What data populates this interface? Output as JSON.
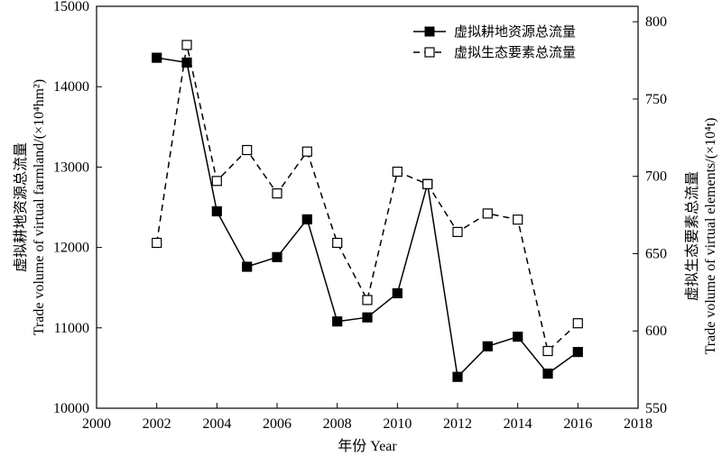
{
  "chart_data": {
    "type": "line",
    "x": [
      2002,
      2003,
      2004,
      2005,
      2006,
      2007,
      2008,
      2009,
      2010,
      2011,
      2012,
      2013,
      2014,
      2015,
      2016
    ],
    "xlabel": "年份 Year",
    "xlim": [
      2000,
      2018
    ],
    "xticks": [
      2000,
      2002,
      2004,
      2006,
      2008,
      2010,
      2012,
      2014,
      2016,
      2018
    ],
    "y_left": {
      "label_cn": "虚拟耕地资源总流量",
      "label_en": "Trade volume of virtual farmland/(×10⁴hm²)",
      "lim": [
        10000,
        15000
      ],
      "ticks": [
        10000,
        11000,
        12000,
        13000,
        14000,
        15000
      ]
    },
    "y_right": {
      "label_cn": "虚拟生态要素总流量",
      "label_en": "Trade volume of virtual elements/(×10⁴t)",
      "lim": [
        550,
        810
      ],
      "ticks": [
        550,
        600,
        650,
        700,
        750,
        800
      ]
    },
    "series": [
      {
        "name": "虚拟耕地资源总流量",
        "axis": "left",
        "line": "solid",
        "marker": "filled-square",
        "values": [
          14360,
          14300,
          12450,
          11760,
          11880,
          12350,
          11080,
          11130,
          11430,
          12790,
          10390,
          10770,
          10890,
          10430,
          10700
        ]
      },
      {
        "name": "虚拟生态要素总流量",
        "axis": "right",
        "line": "dashed",
        "marker": "open-square",
        "values": [
          657,
          785,
          697,
          717,
          689,
          716,
          657,
          620,
          703,
          695,
          664,
          676,
          672,
          587,
          605
        ]
      }
    ],
    "legend_position": "top-right",
    "grid": false
  }
}
